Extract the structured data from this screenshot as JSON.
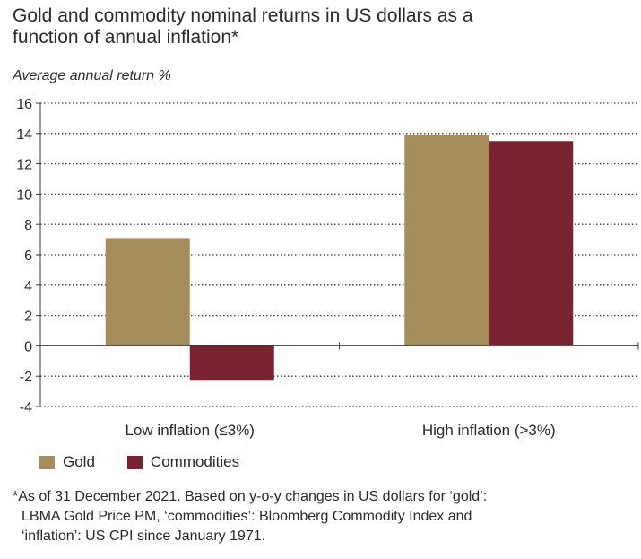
{
  "chart_data": {
    "type": "bar",
    "title": "Gold and commodity nominal returns in US dollars as a function of annual inflation*",
    "ylabel": "Average annual return %",
    "xlabel": "",
    "categories": [
      "Low inflation (≤3%)",
      "High inflation (>3%)"
    ],
    "series": [
      {
        "name": "Gold",
        "color": "#a58d5a",
        "values": [
          7.1,
          13.9
        ]
      },
      {
        "name": "Commodities",
        "color": "#7b2431",
        "values": [
          -2.3,
          13.5
        ]
      }
    ],
    "ylim": [
      -4,
      16
    ],
    "yticks": [
      -4,
      -2,
      0,
      2,
      4,
      6,
      8,
      10,
      12,
      14,
      16
    ],
    "grid": true
  },
  "title_lines": [
    "Gold and commodity nominal returns in US dollars as a",
    "function of annual inflation*"
  ],
  "footnote_lines": [
    "*As of 31 December 2021. Based on y-o-y changes in US dollars for ‘gold’:",
    "LBMA Gold Price PM, ‘commodities’: Bloomberg Commodity Index and",
    "‘inflation’: US CPI since January 1971."
  ]
}
